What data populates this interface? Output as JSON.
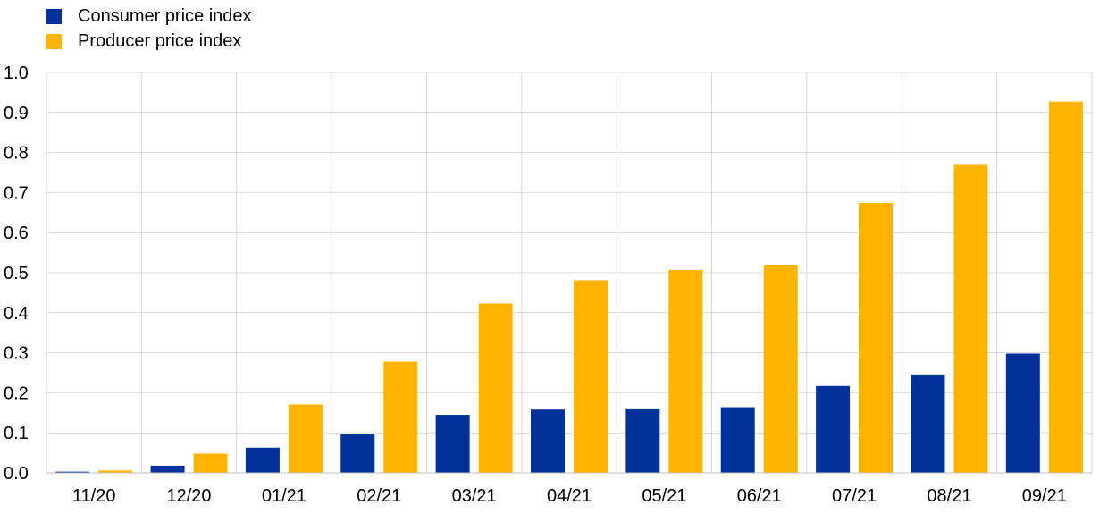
{
  "chart_data": {
    "type": "bar",
    "categories": [
      "11/20",
      "12/20",
      "01/21",
      "02/21",
      "03/21",
      "04/21",
      "05/21",
      "06/21",
      "07/21",
      "08/21",
      "09/21"
    ],
    "series": [
      {
        "name": "Consumer price index",
        "color": "#003299",
        "values": [
          0.003,
          0.018,
          0.063,
          0.098,
          0.145,
          0.158,
          0.161,
          0.164,
          0.217,
          0.246,
          0.298
        ]
      },
      {
        "name": "Producer price index",
        "color": "#FFB400",
        "values": [
          0.006,
          0.048,
          0.171,
          0.278,
          0.423,
          0.481,
          0.507,
          0.518,
          0.674,
          0.769,
          0.927
        ]
      }
    ],
    "title": "",
    "xlabel": "",
    "ylabel": "",
    "ylim": [
      0.0,
      1.0
    ],
    "yticks": [
      "0.0",
      "0.1",
      "0.2",
      "0.3",
      "0.4",
      "0.5",
      "0.6",
      "0.7",
      "0.8",
      "0.9",
      "1.0"
    ],
    "grid": true,
    "legend_position": "top-left"
  }
}
